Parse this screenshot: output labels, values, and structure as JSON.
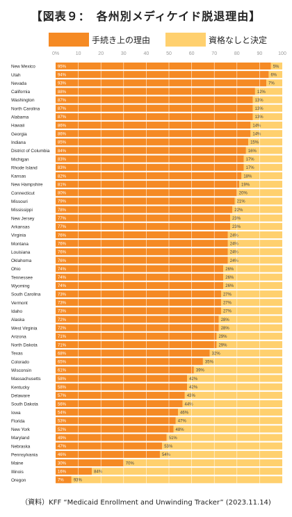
{
  "title": "【図表９：　各州別メディケイド脱退理由】",
  "source": "（資料）KFF “Medicaid Enrollment and Unwinding Tracker” (2023.11.14)",
  "colors": {
    "procedural": "#F58A24",
    "ineligible": "#FFD06E",
    "grid": "#ffffff",
    "tick_text": "#999999"
  },
  "chart_data": {
    "type": "bar",
    "orientation": "horizontal",
    "stacked": true,
    "percent_stacked": true,
    "xlim": [
      0,
      100
    ],
    "xticks": [
      "0%",
      "10",
      "20",
      "30",
      "40",
      "50",
      "60",
      "70",
      "80",
      "90",
      "100"
    ],
    "legend_position": "top",
    "series": [
      {
        "name": "手続き上の理由",
        "color": "#F58A24",
        "values": [
          95,
          94,
          93,
          88,
          87,
          87,
          87,
          86,
          86,
          85,
          84,
          83,
          83,
          82,
          81,
          80,
          79,
          78,
          77,
          77,
          76,
          76,
          76,
          76,
          74,
          74,
          74,
          73,
          73,
          73,
          72,
          72,
          71,
          71,
          68,
          65,
          61,
          58,
          58,
          57,
          56,
          54,
          53,
          52,
          49,
          47,
          46,
          30,
          16,
          7
        ]
      },
      {
        "name": "資格なしと決定",
        "color": "#FFD06E",
        "values": [
          5,
          6,
          7,
          12,
          13,
          13,
          13,
          14,
          14,
          15,
          16,
          17,
          17,
          18,
          19,
          20,
          21,
          22,
          23,
          23,
          24,
          24,
          24,
          24,
          26,
          26,
          26,
          27,
          27,
          27,
          28,
          28,
          29,
          29,
          32,
          35,
          39,
          42,
          42,
          43,
          44,
          46,
          47,
          48,
          51,
          53,
          54,
          70,
          84,
          93
        ]
      }
    ],
    "categories": [
      "New Mexico",
      "Utah",
      "Nevada",
      "California",
      "Washington",
      "North Carolina",
      "Alabama",
      "Hawaii",
      "Georgia",
      "Indiana",
      "District of Columbia",
      "Michigan",
      "Rhode Island",
      "Kansas",
      "New Hampshire",
      "Connecticut",
      "Missouri",
      "Mississippi",
      "New Jersey",
      "Arkansas",
      "Virginia",
      "Montana",
      "Louisiana",
      "Oklahoma",
      "Ohio",
      "Tennessee",
      "Wyoming",
      "South Carolina",
      "Vermont",
      "Idaho",
      "Alaska",
      "West Virginia",
      "Arizona",
      "North Dakota",
      "Texas",
      "Colorado",
      "Wisconsin",
      "Massachusetts",
      "Kentucky",
      "Delaware",
      "South Dakota",
      "Iowa",
      "Florida",
      "New York",
      "Maryland",
      "Nebraska",
      "Pennsylvania",
      "Maine",
      "Illinois",
      "Oregon"
    ],
    "data_label_suffix": "%"
  }
}
